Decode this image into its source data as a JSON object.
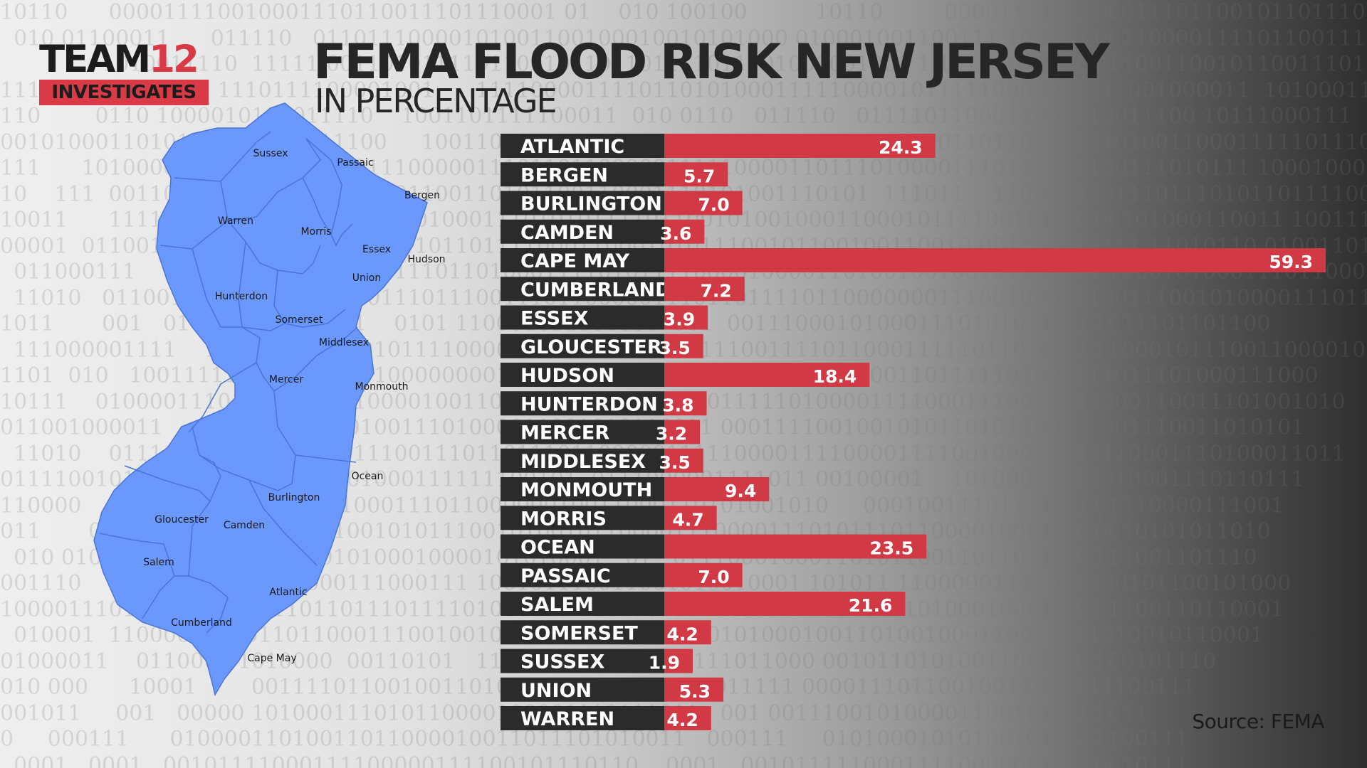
{
  "logo": {
    "main_left": "TEAM",
    "main_right": "12",
    "sub": "INVESTIGATES"
  },
  "title": "FEMA FLOOD RISK NEW JERSEY",
  "subtitle": "IN PERCENTAGE",
  "source": "Source: FEMA",
  "colors": {
    "bar": "#d13a45",
    "label_bg": "#2b2b2b",
    "map_fill": "#6a98fd",
    "accent": "#d93a45"
  },
  "map_labels": [
    "Sussex",
    "Passaic",
    "Bergen",
    "Warren",
    "Morris",
    "Essex",
    "Hudson",
    "Union",
    "Hunterdon",
    "Somerset",
    "Middlesex",
    "Mercer",
    "Monmouth",
    "Ocean",
    "Burlington",
    "Gloucester",
    "Camden",
    "Salem",
    "Atlantic",
    "Cumberland",
    "Cape May"
  ],
  "background_digits": [
    "10110      000011110010001110110011101110001 01    010 100100          10110         00001111011000111011001011011100000111 ",
    "  010 01100011      011110   01101110000101001100100010010101000 010001001100111 100 1100011000011110110011101101 10110011100",
    "               1010011110  11111 0011010111101100101101101111011101001001001 1 1011 0111000011001100101100111011010000101 10",
    "111100111001011  1110111100001001      11110000111101101010001111100001011111000000101  001000011  10100011001101101110111",
    "110        0110 1000010100011110    1001101111100011  010 0110   011110   0111101100011000110011100 10111000111",
    "00101000110101       0110    11100     100110101000110110001100000101001011110110110111101010011000111110111011101000",
    "111      10100001110101011100011100000111011011000001111100001101110100001110111101100111010111 10001000111000101",
    "10    111  00110101001001000011101100110101100110001110101001110101  111011    11001000011101110101101111000001",
    "10011      11110     001111  001111010100011101010111101100101001000110001011110010110100101000110011 10011101",
    "00001  0110010 0011100110010011110110111100011000101011100101100100110010 001110010111 11010110 0100110101100",
    "  011000111      01100010100001001110110100011110101111000010000110100100100101101111 11001010001110110001",
    "  11010   0110011101001   1011001110111001110110000011101101111011000000011100100011100111001010000111011",
    "1011       001   0100011  1100011    0101 110001011101001  001  0011100010100011101010110101011101101100",
    "  111000001111    110100011 1001011110000111011010011101110011110110001111101101001011000101110011000010",
    "1101  010   100111110101  11010100000000110001111000111 001111010011001101111101000111011101000111000",
    "10111    01000011101010101011000010011001111101001010001111101000011110001110011000000110011101001010",
    "011001000011       0100010110010011101000011001010110011 00011110010010101101011000    001110011010101",
    "  11010    0111000001000100001110011101101110110000011111000011110000111100100011100110001110100011011",
    "01111001011     00101110101101000111111100101  0111000001111011 00100001    10100011110010001110110111",
    "110000        100110000101000100011101100000010011000110101001010     0001001110111101001110000111001",
    "011       011000110001101101100101011100101001011000011100001110101110110000100010010010101011010",
    "  010 0100110101100000100010100010000101010001   01   0111000100011010110011011011001111001101110",
    "001110     01110000010101000111000111 100101110011001010010001 101011 11000001111011000101100101000",
    "100001110101100100001101101110111101010111 0111101111101101100010111010001000110101100110110001",
    "  010001  1100000111011011000111001001011011011100110101010001001101001000110011011010010110001",
    "01000011    011000   1010000  00110101   11100  0101000100111011000 00101101010011000101100101110",
    "010 000      10001        0011110110010011010110101011000001011111 00001110110010011010111100111",
    "001011     001   00000 101000111010110000100001110111011   001 0011100101000011001010101011",
    "0     000111      01000011010011011000010011011101010011   000111     010100010101001010111100111",
    "  0001   0001   00101111000111100000111100101110110    0001   001011111000111100000011110010111"
  ],
  "chart_data": {
    "type": "bar",
    "orientation": "horizontal",
    "title": "FEMA FLOOD RISK NEW JERSEY",
    "subtitle": "IN PERCENTAGE",
    "categories": [
      "ATLANTIC",
      "BERGEN",
      "BURLINGTON",
      "CAMDEN",
      "CAPE MAY",
      "CUMBERLAND",
      "ESSEX",
      "GLOUCESTER",
      "HUDSON",
      "HUNTERDON",
      "MERCER",
      "MIDDLESEX",
      "MONMOUTH",
      "MORRIS",
      "OCEAN",
      "PASSAIC",
      "SALEM",
      "SOMERSET",
      "SUSSEX",
      "UNION",
      "WARREN"
    ],
    "values": [
      24.3,
      5.7,
      7.0,
      3.6,
      59.3,
      7.2,
      3.9,
      3.5,
      18.4,
      3.8,
      3.2,
      3.5,
      9.4,
      4.7,
      23.5,
      7.0,
      21.6,
      4.2,
      1.9,
      5.3,
      4.2
    ],
    "value_labels": [
      "24.3",
      "5.7",
      "7.0",
      "3.6",
      "59.3",
      "7.2",
      "3.9",
      "3.5",
      "18.4",
      "3.8",
      "3.2",
      "3.5",
      "9.4",
      "4.7",
      "23.5",
      "7.0",
      "21.6",
      "4.2",
      "1.9",
      "5.3",
      "4.2"
    ],
    "xlim": [
      0,
      59.3
    ],
    "grid": false,
    "legend": "none"
  }
}
